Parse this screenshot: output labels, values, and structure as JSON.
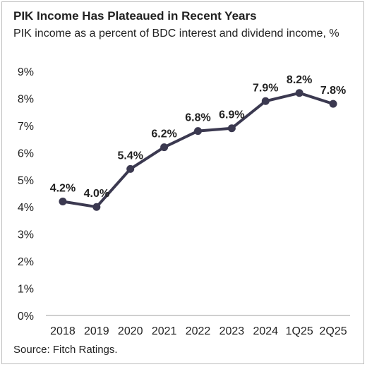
{
  "title": "PIK Income Has Plateaued in Recent Years",
  "subtitle": "PIK income as a percent of BDC interest and dividend income, %",
  "source": "Source: Fitch Ratings.",
  "colors": {
    "line": "#3b3950",
    "text": "#222222",
    "axis": "#bfbfbf"
  },
  "chart_data": {
    "type": "line",
    "categories": [
      "2018",
      "2019",
      "2020",
      "2021",
      "2022",
      "2023",
      "2024",
      "1Q25",
      "2Q25"
    ],
    "values": [
      4.2,
      4.0,
      5.4,
      6.2,
      6.8,
      6.9,
      7.9,
      8.2,
      7.8
    ],
    "data_labels": [
      "4.2%",
      "4.0%",
      "5.4%",
      "6.2%",
      "6.8%",
      "6.9%",
      "7.9%",
      "8.2%",
      "7.8%"
    ],
    "ylim": [
      0,
      9
    ],
    "yticks": [
      0,
      1,
      2,
      3,
      4,
      5,
      6,
      7,
      8,
      9
    ],
    "ytick_labels": [
      "0%",
      "1%",
      "2%",
      "3%",
      "4%",
      "5%",
      "6%",
      "7%",
      "8%",
      "9%"
    ],
    "grid": false,
    "legend": "none"
  }
}
